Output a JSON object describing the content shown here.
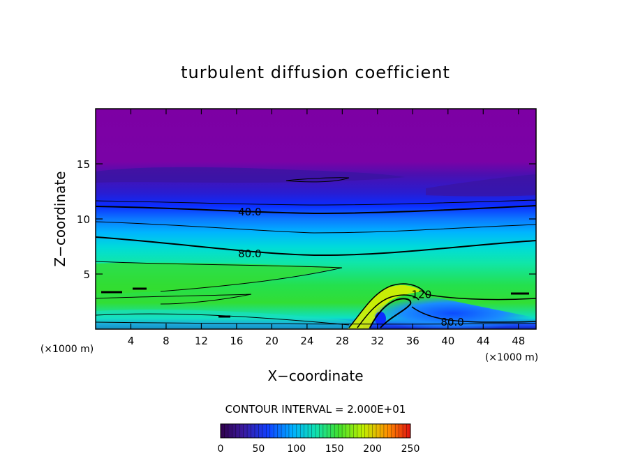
{
  "chart_data": {
    "type": "heatmap",
    "title": "turbulent diffusion coefficient",
    "xlabel": "X−coordinate",
    "ylabel": "Z−coordinate",
    "x_unit_left": "(×1000 m)",
    "x_unit_right": "(×1000 m)",
    "xlim": [
      0,
      50
    ],
    "ylim": [
      0,
      20
    ],
    "x_ticks": [
      4,
      8,
      12,
      16,
      20,
      24,
      28,
      32,
      36,
      40,
      44,
      48
    ],
    "y_ticks": [
      5,
      10,
      15
    ],
    "contour_labels": [
      {
        "text": "40.0",
        "x": 17.5,
        "y": 10.7
      },
      {
        "text": "80.0",
        "x": 17.5,
        "y": 6.9
      },
      {
        "text": "120",
        "x": 37.0,
        "y": 3.2
      },
      {
        "text": "80.0",
        "x": 40.5,
        "y": 0.7
      }
    ],
    "colorbar": {
      "min": 0,
      "max": 250,
      "tick_labels": [
        "0",
        "50",
        "100",
        "150",
        "200",
        "250"
      ],
      "caption": "CONTOUR INTERVAL = 2.000E+01"
    },
    "colors": {
      "purple": "#7d00a4",
      "indigo": "#3c1ab4",
      "blue": "#0c2cff",
      "cyan": "#00bcff",
      "teal": "#12e6a6",
      "green": "#2ce020",
      "yellow": "#d8f000",
      "red": "#e02000"
    }
  }
}
